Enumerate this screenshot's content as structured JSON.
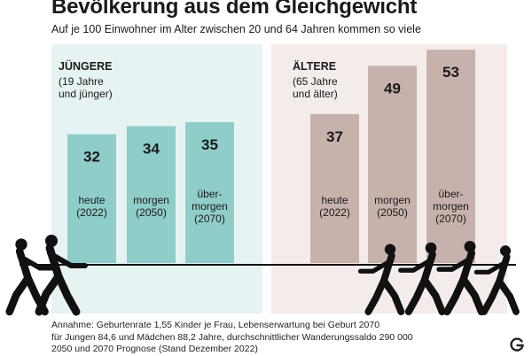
{
  "header": {
    "title": "Bevölkerung aus dem Gleichgewicht",
    "subtitle": "Auf je 100 Einwohner im Alter zwischen 20 und 64 Jahren kommen so viele"
  },
  "chart_data": {
    "type": "bar",
    "title": "Bevölkerung aus dem Gleichgewicht",
    "subtitle": "Auf je 100 Einwohner im Alter zwischen 20 und 64 Jahren kommen so viele",
    "xlabel": "",
    "ylabel": "",
    "ylim": [
      0,
      55
    ],
    "grid": false,
    "legend": "none",
    "series": [
      {
        "name": "JÜNGERE",
        "note": [
          "(19 Jahre",
          "und jünger)"
        ],
        "color": "#8fcdc9",
        "panel_color": "#e6f3f3",
        "categories": [
          [
            "heute",
            "(2022)"
          ],
          [
            "morgen",
            "(2050)"
          ],
          [
            "über-",
            "morgen",
            "(2070)"
          ]
        ],
        "values": [
          32,
          34,
          35
        ]
      },
      {
        "name": "ÄLTERE",
        "note": [
          "(65 Jahre",
          "und älter)"
        ],
        "color": "#c7b2ab",
        "panel_color": "#f3ecea",
        "categories": [
          [
            "heute",
            "(2022)"
          ],
          [
            "morgen",
            "(2050)"
          ],
          [
            "über-",
            "morgen",
            "(2070)"
          ]
        ],
        "values": [
          37,
          49,
          53
        ]
      }
    ]
  },
  "footnote": {
    "lines": [
      "Annahme: Geburtenrate 1,55 Kinder je Frau, Lebenserwartung bei Geburt 2070",
      "für Jungen 84,6 und Mädchen 88,2 Jahre, durchschnittlicher Wanderungssaldo 290 000",
      "2050 und 2070 Prognose (Stand Dezember 2022)"
    ]
  },
  "icons": {
    "logo": "globus-logo-icon",
    "figures": "tug-of-war-people-icon"
  }
}
